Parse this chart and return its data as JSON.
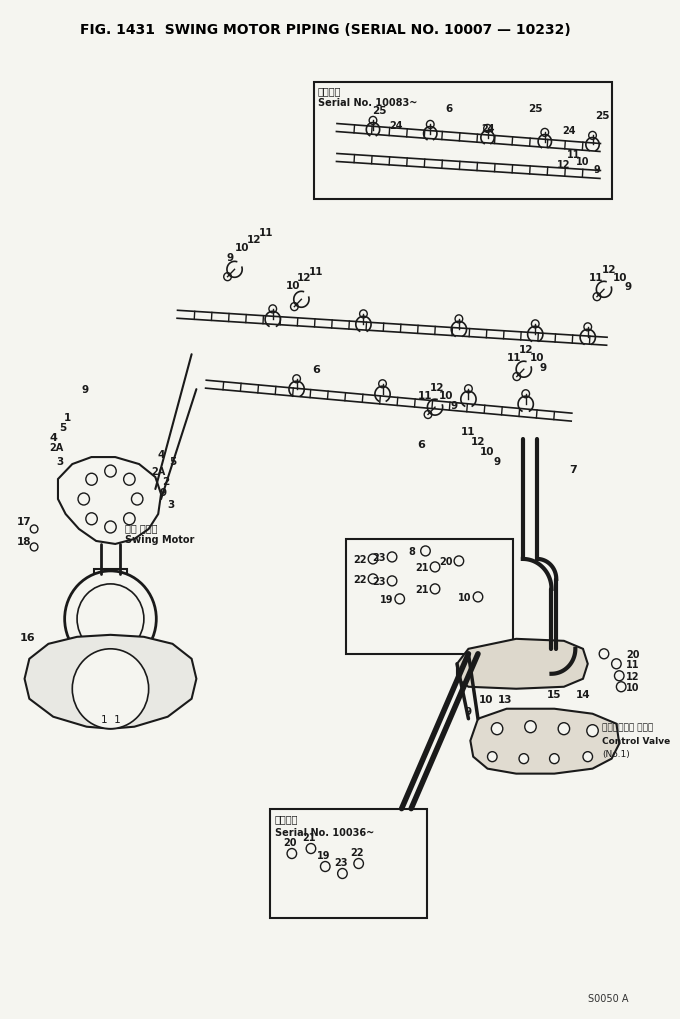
{
  "title": "FIG. 1431  SWING MOTOR PIPING (SERIAL NO. 10007 — 10232)",
  "title_fontsize": 10.5,
  "title_fontweight": "bold",
  "bg_color": "#f5f5f0",
  "fig_width": 6.8,
  "fig_height": 10.2,
  "dpi": 100,
  "bottom_code": "S0050 A",
  "serial_box1_label1": "適用号毎",
  "serial_box1_label2": "Serial No. 10083~",
  "serial_box2_label1": "適用号毎",
  "serial_box2_label2": "Serial No. 10036~",
  "swing_motor_jp": "旋回 モータ",
  "swing_motor_en": "Swing Motor",
  "cv_jp": "コントロール バルブ",
  "cv_en": "Control Valve",
  "cv_no": "(No.1)",
  "lc": "#1a1a1a"
}
